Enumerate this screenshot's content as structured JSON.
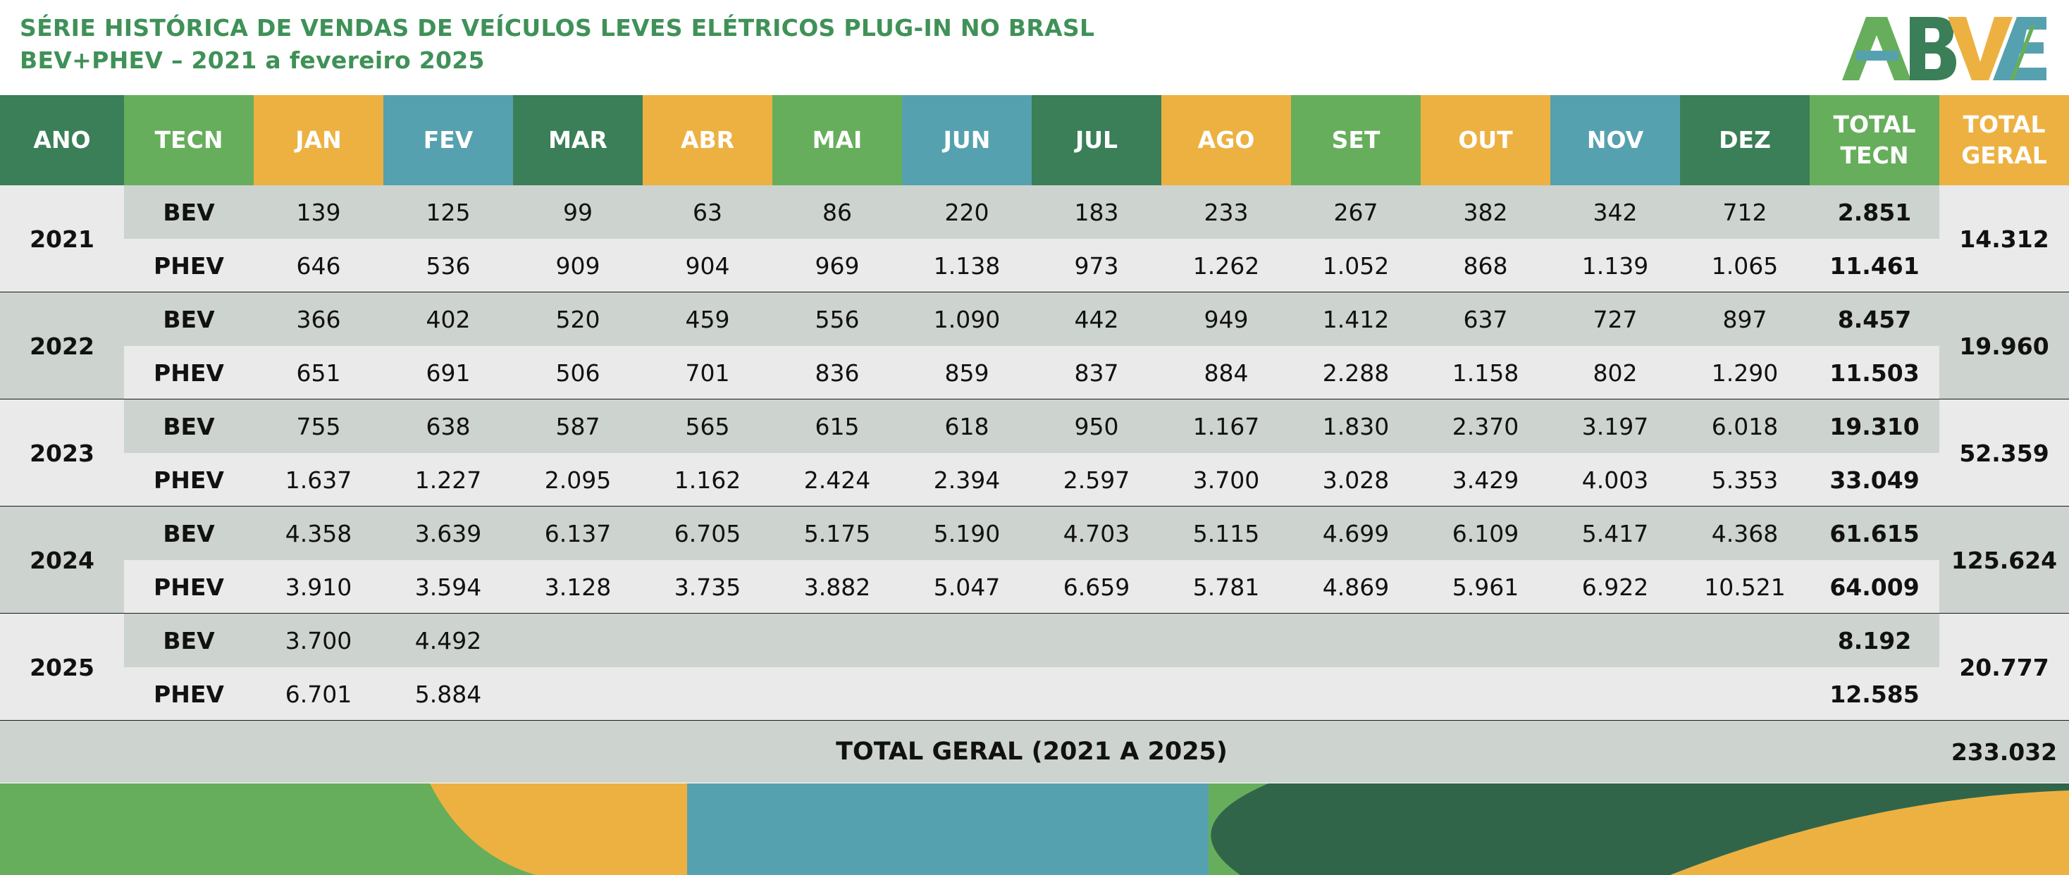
{
  "title_line1": "SÉRIE HISTÓRICA DE VENDAS DE VEÍCULOS LEVES ELÉTRICOS PLUG-IN NO BRASL",
  "title_line2": "BEV+PHEV – 2021 a fevereiro 2025",
  "logo_text": "ABVE",
  "colors": {
    "dark_green": "#3a7f57",
    "green": "#66ae5b",
    "orange": "#edb142",
    "teal": "#56a1af",
    "row_dark": "#cdd3ce",
    "row_light": "#e9eae9",
    "title_green": "#3f9157",
    "deep_green": "#31654a"
  },
  "chart_data": {
    "type": "table",
    "headers": [
      {
        "text": "ANO",
        "color": "dark_green"
      },
      {
        "text": "TECN",
        "color": "green"
      },
      {
        "text": "JAN",
        "color": "orange"
      },
      {
        "text": "FEV",
        "color": "teal"
      },
      {
        "text": "MAR",
        "color": "dark_green"
      },
      {
        "text": "ABR",
        "color": "orange"
      },
      {
        "text": "MAI",
        "color": "green"
      },
      {
        "text": "JUN",
        "color": "teal"
      },
      {
        "text": "JUL",
        "color": "dark_green"
      },
      {
        "text": "AGO",
        "color": "orange"
      },
      {
        "text": "SET",
        "color": "green"
      },
      {
        "text": "OUT",
        "color": "orange"
      },
      {
        "text": "NOV",
        "color": "teal"
      },
      {
        "text": "DEZ",
        "color": "dark_green"
      },
      {
        "text": "TOTAL\nTECN",
        "color": "green"
      },
      {
        "text": "TOTAL\nGERAL",
        "color": "orange"
      }
    ],
    "years": [
      {
        "year": "2021",
        "total": "14.312",
        "rows": [
          {
            "tech": "BEV",
            "months": [
              "139",
              "125",
              "99",
              "63",
              "86",
              "220",
              "183",
              "233",
              "267",
              "382",
              "342",
              "712"
            ],
            "total": "2.851"
          },
          {
            "tech": "PHEV",
            "months": [
              "646",
              "536",
              "909",
              "904",
              "969",
              "1.138",
              "973",
              "1.262",
              "1.052",
              "868",
              "1.139",
              "1.065"
            ],
            "total": "11.461"
          }
        ]
      },
      {
        "year": "2022",
        "total": "19.960",
        "rows": [
          {
            "tech": "BEV",
            "months": [
              "366",
              "402",
              "520",
              "459",
              "556",
              "1.090",
              "442",
              "949",
              "1.412",
              "637",
              "727",
              "897"
            ],
            "total": "8.457"
          },
          {
            "tech": "PHEV",
            "months": [
              "651",
              "691",
              "506",
              "701",
              "836",
              "859",
              "837",
              "884",
              "2.288",
              "1.158",
              "802",
              "1.290"
            ],
            "total": "11.503"
          }
        ]
      },
      {
        "year": "2023",
        "total": "52.359",
        "rows": [
          {
            "tech": "BEV",
            "months": [
              "755",
              "638",
              "587",
              "565",
              "615",
              "618",
              "950",
              "1.167",
              "1.830",
              "2.370",
              "3.197",
              "6.018"
            ],
            "total": "19.310"
          },
          {
            "tech": "PHEV",
            "months": [
              "1.637",
              "1.227",
              "2.095",
              "1.162",
              "2.424",
              "2.394",
              "2.597",
              "3.700",
              "3.028",
              "3.429",
              "4.003",
              "5.353"
            ],
            "total": "33.049"
          }
        ]
      },
      {
        "year": "2024",
        "total": "125.624",
        "rows": [
          {
            "tech": "BEV",
            "months": [
              "4.358",
              "3.639",
              "6.137",
              "6.705",
              "5.175",
              "5.190",
              "4.703",
              "5.115",
              "4.699",
              "6.109",
              "5.417",
              "4.368"
            ],
            "total": "61.615"
          },
          {
            "tech": "PHEV",
            "months": [
              "3.910",
              "3.594",
              "3.128",
              "3.735",
              "3.882",
              "5.047",
              "6.659",
              "5.781",
              "4.869",
              "5.961",
              "6.922",
              "10.521"
            ],
            "total": "64.009"
          }
        ]
      },
      {
        "year": "2025",
        "total": "20.777",
        "rows": [
          {
            "tech": "BEV",
            "months": [
              "3.700",
              "4.492",
              "",
              "",
              "",
              "",
              "",
              "",
              "",
              "",
              "",
              ""
            ],
            "total": "8.192"
          },
          {
            "tech": "PHEV",
            "months": [
              "6.701",
              "5.884",
              "",
              "",
              "",
              "",
              "",
              "",
              "",
              "",
              "",
              ""
            ],
            "total": "12.585"
          }
        ]
      }
    ],
    "grand_total_label": "TOTAL GERAL (2021 A 2025)",
    "grand_total_value": "233.032"
  }
}
